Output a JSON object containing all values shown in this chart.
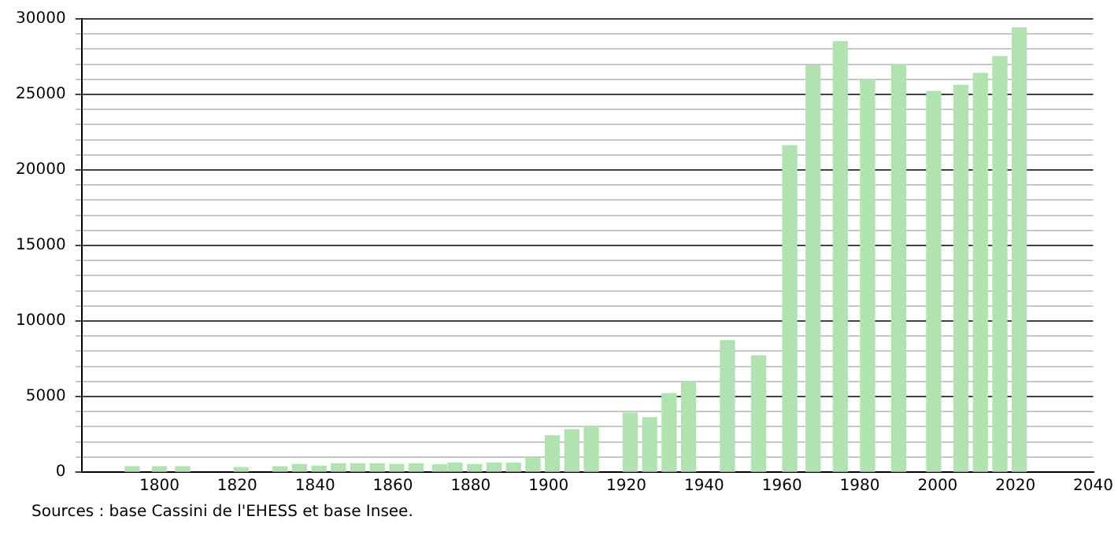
{
  "chart_data": {
    "type": "bar",
    "x": [
      1793,
      1800,
      1806,
      1821,
      1831,
      1836,
      1841,
      1846,
      1851,
      1856,
      1861,
      1866,
      1872,
      1876,
      1881,
      1886,
      1891,
      1896,
      1901,
      1906,
      1911,
      1921,
      1926,
      1931,
      1936,
      1946,
      1954,
      1962,
      1968,
      1975,
      1982,
      1990,
      1999,
      2006,
      2011,
      2016,
      2021
    ],
    "values": [
      350,
      350,
      350,
      300,
      350,
      500,
      400,
      550,
      550,
      550,
      500,
      550,
      480,
      600,
      500,
      600,
      600,
      900,
      2400,
      2800,
      3000,
      3900,
      3600,
      5200,
      6000,
      8700,
      7700,
      21600,
      26900,
      28500,
      26000,
      27000,
      25200,
      25600,
      26400,
      27500,
      29400
    ],
    "color": "#b1e3b1",
    "xlim": [
      1780,
      2040
    ],
    "xticks": [
      1800,
      1820,
      1840,
      1860,
      1880,
      1900,
      1920,
      1940,
      1960,
      1980,
      2000,
      2020,
      2040
    ],
    "ylim": [
      0,
      30000
    ],
    "yticks": [
      0,
      {
        "value": 1000,
        "label": null
      },
      {
        "value": 2000,
        "label": null
      },
      {
        "value": 3000,
        "label": null
      },
      {
        "value": 4000,
        "label": null
      },
      5000,
      {
        "value": 6000,
        "label": null
      },
      {
        "value": 7000,
        "label": null
      },
      {
        "value": 8000,
        "label": null
      },
      {
        "value": 9000,
        "label": null
      },
      10000,
      {
        "value": 11000,
        "label": null
      },
      {
        "value": 12000,
        "label": null
      },
      {
        "value": 13000,
        "label": null
      },
      {
        "value": 14000,
        "label": null
      },
      15000,
      {
        "value": 16000,
        "label": null
      },
      {
        "value": 17000,
        "label": null
      },
      {
        "value": 18000,
        "label": null
      },
      {
        "value": 19000,
        "label": null
      },
      20000,
      {
        "value": 21000,
        "label": null
      },
      {
        "value": 22000,
        "label": null
      },
      {
        "value": 23000,
        "label": null
      },
      {
        "value": 24000,
        "label": null
      },
      25000,
      {
        "value": 26000,
        "label": null
      },
      {
        "value": 27000,
        "label": null
      },
      {
        "value": 28000,
        "label": null
      },
      {
        "value": 29000,
        "label": null
      },
      30000
    ],
    "grid": "y",
    "legend": false,
    "annotations": [
      "Sources : base Cassini de l'EHESS et base Insee."
    ]
  }
}
